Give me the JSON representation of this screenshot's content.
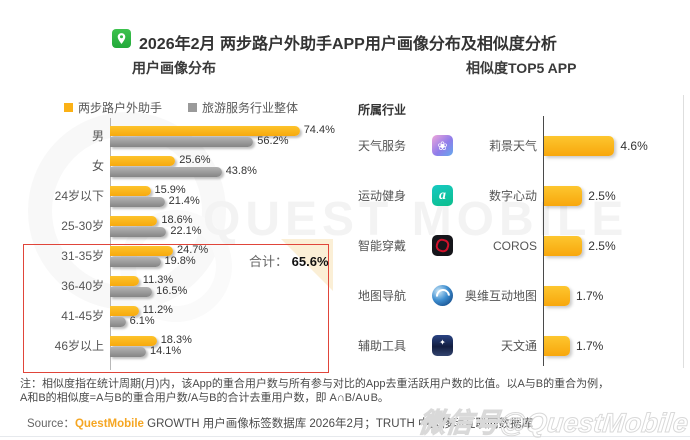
{
  "header": {
    "title": "2026年2月 两步路户外助手APP用户画像分布及相似度分析",
    "app_icon": "two-step-road-app-icon"
  },
  "sections": {
    "left_title": "用户画像分布",
    "right_title": "相似度TOP5 APP"
  },
  "chart_data": [
    {
      "type": "bar",
      "title": "用户画像分布",
      "orientation": "horizontal",
      "unit": "%",
      "xlim": [
        0,
        80
      ],
      "grid": false,
      "legend_position": "top",
      "categories": [
        "男",
        "女",
        "24岁以下",
        "25-30岁",
        "31-35岁",
        "36-40岁",
        "41-45岁",
        "46岁以上"
      ],
      "series": [
        {
          "name": "两步路户外助手",
          "color": "#FBB116",
          "values": [
            74.4,
            25.6,
            15.9,
            18.6,
            24.7,
            11.3,
            11.2,
            18.3
          ]
        },
        {
          "name": "旅游服务行业整体",
          "color": "#9A9A9A",
          "values": [
            56.2,
            43.8,
            21.4,
            22.1,
            19.8,
            16.5,
            6.1,
            14.1
          ]
        }
      ],
      "highlight": {
        "categories": [
          "31-35岁",
          "36-40岁",
          "41-45岁",
          "46岁以上"
        ],
        "label": "合计：",
        "value": "65.6%",
        "box_color": "#E0453A"
      }
    },
    {
      "type": "bar",
      "title": "相似度TOP5 APP",
      "orientation": "horizontal",
      "unit": "%",
      "xlim": [
        0,
        5
      ],
      "industry_header": "所属行业",
      "rows": [
        {
          "industry": "天气服务",
          "app": "莉景天气",
          "value": 4.6,
          "icon": "lijing-weather-app-icon"
        },
        {
          "industry": "运动健身",
          "app": "数字心动",
          "value": 2.5,
          "icon": "digital-heartbeat-app-icon"
        },
        {
          "industry": "智能穿戴",
          "app": "COROS",
          "value": 2.5,
          "icon": "coros-app-icon"
        },
        {
          "industry": "地图导航",
          "app": "奥维互动地图",
          "value": 1.7,
          "icon": "ovital-map-app-icon"
        },
        {
          "industry": "辅助工具",
          "app": "天文通",
          "value": 1.7,
          "icon": "tianwentong-app-icon"
        }
      ]
    }
  ],
  "footer": {
    "note_line1": "注：相似度指在统计周期(月)内，该App的重合用户数与所有参与对比的App去重活跃用户数的比值。以A与B的重合为例，",
    "note_line2": "A和B的相似度=A与B的重合用户数/A与B的合计去重用户数，即 A∩B/A∪B。",
    "source_prefix": "Source：",
    "source_brand": "QuestMobile",
    "source_rest": " GROWTH 用户画像标签数据库 2026年2月；TRUTH 中国移动互联网数据库",
    "watermark": "微信号@QuestMobile"
  },
  "watermarks": {
    "ghost_text": "QUEST MOBILE"
  },
  "colors": {
    "bar_yellow": "#FBB116",
    "bar_gray": "#9A9A9A",
    "highlight_red": "#E0453A",
    "brand_orange": "#F5A623",
    "logo_green": "#2FB54A"
  }
}
